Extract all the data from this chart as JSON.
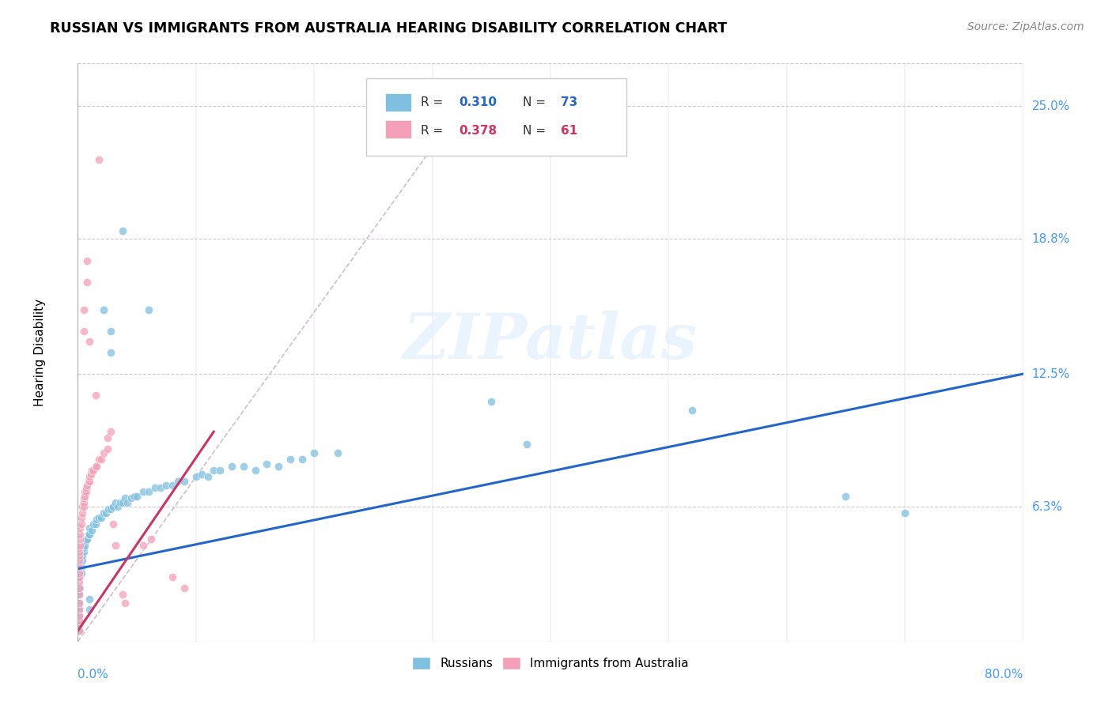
{
  "title": "RUSSIAN VS IMMIGRANTS FROM AUSTRALIA HEARING DISABILITY CORRELATION CHART",
  "source": "Source: ZipAtlas.com",
  "ylabel": "Hearing Disability",
  "ytick_vals": [
    0.063,
    0.125,
    0.188,
    0.25
  ],
  "ytick_labels": [
    "6.3%",
    "12.5%",
    "18.8%",
    "25.0%"
  ],
  "xlim": [
    0,
    0.8
  ],
  "ylim": [
    0,
    0.27
  ],
  "color_blue": "#7fbfdf",
  "color_pink": "#f4a0b8",
  "trendline_blue": "#2266cc",
  "trendline_pink": "#cc3366",
  "trendline_dashed_color": "#c8b8c8",
  "watermark": "ZIPatlas",
  "legend_r_blue": "0.310",
  "legend_n_blue": "73",
  "legend_r_pink": "0.378",
  "legend_n_pink": "61",
  "blue_trend": [
    0.0,
    0.034,
    0.8,
    0.125
  ],
  "pink_trend": [
    0.0,
    0.005,
    0.115,
    0.098
  ],
  "dashed_line": [
    0.0,
    0.0,
    0.325,
    0.25
  ],
  "blue_points": [
    [
      0.001,
      0.005
    ],
    [
      0.001,
      0.008
    ],
    [
      0.001,
      0.01
    ],
    [
      0.001,
      0.012
    ],
    [
      0.001,
      0.015
    ],
    [
      0.001,
      0.018
    ],
    [
      0.001,
      0.022
    ],
    [
      0.002,
      0.025
    ],
    [
      0.002,
      0.03
    ],
    [
      0.003,
      0.032
    ],
    [
      0.003,
      0.035
    ],
    [
      0.004,
      0.038
    ],
    [
      0.004,
      0.04
    ],
    [
      0.005,
      0.042
    ],
    [
      0.005,
      0.044
    ],
    [
      0.006,
      0.045
    ],
    [
      0.007,
      0.047
    ],
    [
      0.008,
      0.048
    ],
    [
      0.009,
      0.05
    ],
    [
      0.01,
      0.05
    ],
    [
      0.01,
      0.053
    ],
    [
      0.012,
      0.052
    ],
    [
      0.013,
      0.055
    ],
    [
      0.015,
      0.055
    ],
    [
      0.016,
      0.057
    ],
    [
      0.018,
      0.058
    ],
    [
      0.02,
      0.058
    ],
    [
      0.022,
      0.06
    ],
    [
      0.024,
      0.06
    ],
    [
      0.026,
      0.062
    ],
    [
      0.028,
      0.062
    ],
    [
      0.03,
      0.063
    ],
    [
      0.032,
      0.065
    ],
    [
      0.034,
      0.063
    ],
    [
      0.036,
      0.065
    ],
    [
      0.038,
      0.065
    ],
    [
      0.04,
      0.067
    ],
    [
      0.042,
      0.065
    ],
    [
      0.045,
      0.067
    ],
    [
      0.048,
      0.068
    ],
    [
      0.05,
      0.068
    ],
    [
      0.055,
      0.07
    ],
    [
      0.06,
      0.07
    ],
    [
      0.065,
      0.072
    ],
    [
      0.07,
      0.072
    ],
    [
      0.075,
      0.073
    ],
    [
      0.08,
      0.073
    ],
    [
      0.085,
      0.075
    ],
    [
      0.09,
      0.075
    ],
    [
      0.1,
      0.077
    ],
    [
      0.105,
      0.078
    ],
    [
      0.11,
      0.077
    ],
    [
      0.115,
      0.08
    ],
    [
      0.12,
      0.08
    ],
    [
      0.13,
      0.082
    ],
    [
      0.14,
      0.082
    ],
    [
      0.15,
      0.08
    ],
    [
      0.16,
      0.083
    ],
    [
      0.17,
      0.082
    ],
    [
      0.18,
      0.085
    ],
    [
      0.19,
      0.085
    ],
    [
      0.2,
      0.088
    ],
    [
      0.22,
      0.088
    ],
    [
      0.022,
      0.155
    ],
    [
      0.028,
      0.145
    ],
    [
      0.028,
      0.135
    ],
    [
      0.038,
      0.192
    ],
    [
      0.06,
      0.155
    ],
    [
      0.35,
      0.112
    ],
    [
      0.38,
      0.092
    ],
    [
      0.52,
      0.108
    ],
    [
      0.65,
      0.068
    ],
    [
      0.7,
      0.06
    ],
    [
      0.01,
      0.02
    ],
    [
      0.01,
      0.015
    ]
  ],
  "pink_points": [
    [
      0.001,
      0.005
    ],
    [
      0.001,
      0.008
    ],
    [
      0.001,
      0.01
    ],
    [
      0.001,
      0.012
    ],
    [
      0.001,
      0.015
    ],
    [
      0.001,
      0.018
    ],
    [
      0.001,
      0.022
    ],
    [
      0.001,
      0.025
    ],
    [
      0.001,
      0.028
    ],
    [
      0.001,
      0.03
    ],
    [
      0.001,
      0.032
    ],
    [
      0.001,
      0.035
    ],
    [
      0.001,
      0.038
    ],
    [
      0.001,
      0.04
    ],
    [
      0.001,
      0.042
    ],
    [
      0.001,
      0.044
    ],
    [
      0.002,
      0.045
    ],
    [
      0.002,
      0.048
    ],
    [
      0.002,
      0.05
    ],
    [
      0.002,
      0.053
    ],
    [
      0.003,
      0.055
    ],
    [
      0.003,
      0.058
    ],
    [
      0.004,
      0.06
    ],
    [
      0.004,
      0.063
    ],
    [
      0.005,
      0.063
    ],
    [
      0.005,
      0.065
    ],
    [
      0.005,
      0.067
    ],
    [
      0.006,
      0.068
    ],
    [
      0.006,
      0.07
    ],
    [
      0.007,
      0.07
    ],
    [
      0.007,
      0.072
    ],
    [
      0.008,
      0.073
    ],
    [
      0.009,
      0.075
    ],
    [
      0.01,
      0.075
    ],
    [
      0.01,
      0.077
    ],
    [
      0.011,
      0.078
    ],
    [
      0.012,
      0.08
    ],
    [
      0.013,
      0.08
    ],
    [
      0.015,
      0.082
    ],
    [
      0.016,
      0.082
    ],
    [
      0.018,
      0.085
    ],
    [
      0.02,
      0.085
    ],
    [
      0.022,
      0.088
    ],
    [
      0.025,
      0.09
    ],
    [
      0.025,
      0.095
    ],
    [
      0.028,
      0.098
    ],
    [
      0.005,
      0.145
    ],
    [
      0.005,
      0.155
    ],
    [
      0.008,
      0.168
    ],
    [
      0.008,
      0.178
    ],
    [
      0.01,
      0.14
    ],
    [
      0.015,
      0.115
    ],
    [
      0.018,
      0.225
    ],
    [
      0.03,
      0.055
    ],
    [
      0.032,
      0.045
    ],
    [
      0.038,
      0.022
    ],
    [
      0.04,
      0.018
    ],
    [
      0.055,
      0.045
    ],
    [
      0.062,
      0.048
    ],
    [
      0.08,
      0.03
    ],
    [
      0.09,
      0.025
    ]
  ]
}
